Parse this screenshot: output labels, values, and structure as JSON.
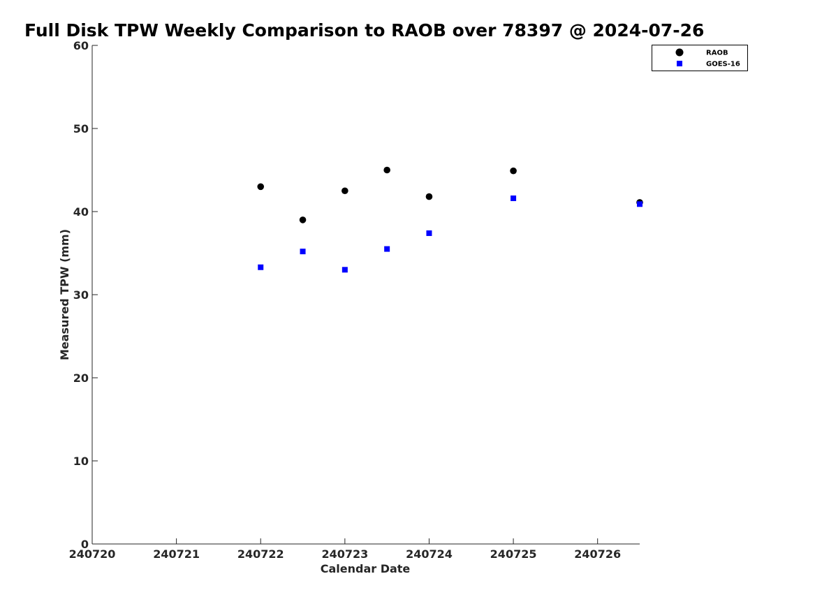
{
  "chart_data": {
    "type": "scatter",
    "title": "Full Disk TPW Weekly Comparison to RAOB over 78397 @ 2024-07-26",
    "xlabel": "Calendar Date",
    "ylabel": "Measured TPW (mm)",
    "xlim": [
      "2024-07-20",
      "2024-07-26T12:00"
    ],
    "ylim": [
      0,
      60
    ],
    "x_ticks": [
      {
        "value": "2024-07-20",
        "label": "240720"
      },
      {
        "value": "2024-07-21",
        "label": "240721"
      },
      {
        "value": "2024-07-22",
        "label": "240722"
      },
      {
        "value": "2024-07-23",
        "label": "240723"
      },
      {
        "value": "2024-07-24",
        "label": "240724"
      },
      {
        "value": "2024-07-25",
        "label": "240725"
      },
      {
        "value": "2024-07-26",
        "label": "240726"
      }
    ],
    "y_ticks": [
      0,
      10,
      20,
      30,
      40,
      50,
      60
    ],
    "grid": false,
    "legend": "top-right",
    "series": [
      {
        "name": "RAOB",
        "marker": "circle",
        "color": "#000000",
        "points": [
          {
            "x": "2024-07-22T00:00",
            "y": 43.0
          },
          {
            "x": "2024-07-22T12:00",
            "y": 39.0
          },
          {
            "x": "2024-07-23T00:00",
            "y": 42.5
          },
          {
            "x": "2024-07-23T12:00",
            "y": 45.0
          },
          {
            "x": "2024-07-24T00:00",
            "y": 41.8
          },
          {
            "x": "2024-07-25T00:00",
            "y": 44.9
          },
          {
            "x": "2024-07-26T12:00",
            "y": 41.1
          }
        ]
      },
      {
        "name": "GOES-16",
        "marker": "square",
        "color": "#0000ff",
        "points": [
          {
            "x": "2024-07-22T00:00",
            "y": 33.3
          },
          {
            "x": "2024-07-22T12:00",
            "y": 35.2
          },
          {
            "x": "2024-07-23T00:00",
            "y": 33.0
          },
          {
            "x": "2024-07-23T12:00",
            "y": 35.5
          },
          {
            "x": "2024-07-24T00:00",
            "y": 37.4
          },
          {
            "x": "2024-07-25T00:00",
            "y": 41.6
          },
          {
            "x": "2024-07-26T12:00",
            "y": 40.9
          }
        ]
      }
    ]
  }
}
